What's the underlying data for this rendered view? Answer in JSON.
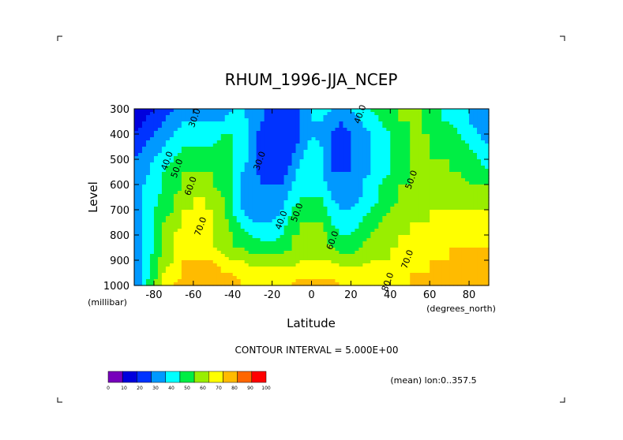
{
  "chart_data": {
    "type": "heatmap",
    "title": "RHUM_1996-JJA_NCEP",
    "xlabel": "Latitude",
    "ylabel": "Level",
    "x_unit": "(degrees_north)",
    "y_unit": "(millibar)",
    "xlim": [
      -90,
      90
    ],
    "ylim": [
      1000,
      300
    ],
    "x_ticks": [
      -80,
      -60,
      -40,
      -20,
      0,
      20,
      40,
      60,
      80
    ],
    "x_tick_labels": [
      "-80",
      "-60",
      "-40",
      "-20",
      "0",
      "20",
      "40",
      "60",
      "80"
    ],
    "y_ticks": [
      300,
      400,
      500,
      600,
      700,
      800,
      900,
      1000
    ],
    "y_tick_labels": [
      "300",
      "400",
      "500",
      "600",
      "700",
      "800",
      "900",
      "1000"
    ],
    "contour_interval_text": "CONTOUR INTERVAL = 5.000E+00",
    "annotation": "(mean) lon:0..357.5",
    "contour_labels": [
      {
        "text": "30.0",
        "lat": -58,
        "lev": 340
      },
      {
        "text": "40.0",
        "lat": -72,
        "lev": 510
      },
      {
        "text": "50.0",
        "lat": -67,
        "lev": 540
      },
      {
        "text": "60.0",
        "lat": -60,
        "lev": 610
      },
      {
        "text": "70.0",
        "lat": -55,
        "lev": 770
      },
      {
        "text": "30.0",
        "lat": -25,
        "lev": 510
      },
      {
        "text": "40.0",
        "lat": -14,
        "lev": 745
      },
      {
        "text": "50.0",
        "lat": -6,
        "lev": 715
      },
      {
        "text": "60.0",
        "lat": 12,
        "lev": 825
      },
      {
        "text": "40.0",
        "lat": 26,
        "lev": 325
      },
      {
        "text": "50.0",
        "lat": 52,
        "lev": 585
      },
      {
        "text": "70.0",
        "lat": 50,
        "lev": 900
      },
      {
        "text": "80.0",
        "lat": 40,
        "lev": 990
      }
    ],
    "lat_grid": [
      -90,
      -85,
      -80,
      -75,
      -70,
      -65,
      -60,
      -55,
      -50,
      -45,
      -40,
      -35,
      -30,
      -25,
      -20,
      -15,
      -10,
      -5,
      0,
      5,
      10,
      15,
      20,
      25,
      30,
      35,
      40,
      45,
      50,
      55,
      60,
      65,
      70,
      75,
      80,
      85,
      90
    ],
    "lev_grid": [
      300,
      350,
      400,
      450,
      500,
      550,
      600,
      650,
      700,
      750,
      800,
      850,
      900,
      950,
      1000
    ],
    "values": [
      [
        10,
        15,
        20,
        25,
        30,
        35,
        35,
        35,
        35,
        35,
        40,
        40,
        35,
        30,
        25,
        25,
        25,
        30,
        40,
        45,
        40,
        35,
        40,
        45,
        50,
        55,
        60,
        60,
        60,
        60,
        55,
        50,
        45,
        45,
        40,
        35,
        30
      ],
      [
        15,
        20,
        25,
        30,
        35,
        40,
        40,
        40,
        40,
        40,
        45,
        45,
        35,
        30,
        25,
        25,
        25,
        30,
        40,
        40,
        35,
        30,
        35,
        40,
        45,
        50,
        55,
        60,
        60,
        60,
        55,
        50,
        50,
        45,
        40,
        35,
        30
      ],
      [
        20,
        25,
        30,
        35,
        40,
        45,
        45,
        45,
        45,
        50,
        50,
        45,
        35,
        25,
        20,
        20,
        25,
        30,
        40,
        35,
        30,
        25,
        30,
        35,
        40,
        45,
        50,
        55,
        60,
        60,
        60,
        55,
        55,
        50,
        45,
        40,
        35
      ],
      [
        25,
        30,
        35,
        40,
        45,
        50,
        50,
        50,
        50,
        55,
        50,
        45,
        35,
        25,
        20,
        20,
        25,
        35,
        45,
        40,
        30,
        25,
        30,
        35,
        40,
        45,
        50,
        55,
        60,
        60,
        60,
        55,
        55,
        55,
        50,
        45,
        40
      ],
      [
        30,
        35,
        40,
        45,
        50,
        55,
        55,
        55,
        55,
        55,
        50,
        45,
        35,
        25,
        20,
        20,
        30,
        40,
        45,
        40,
        30,
        25,
        30,
        35,
        40,
        45,
        50,
        55,
        60,
        60,
        60,
        60,
        60,
        55,
        55,
        50,
        45
      ],
      [
        30,
        35,
        45,
        50,
        55,
        60,
        60,
        60,
        60,
        55,
        50,
        40,
        35,
        25,
        25,
        25,
        35,
        45,
        45,
        40,
        30,
        30,
        30,
        35,
        40,
        45,
        50,
        55,
        60,
        60,
        60,
        60,
        60,
        60,
        55,
        55,
        50
      ],
      [
        30,
        40,
        45,
        50,
        55,
        60,
        65,
        65,
        60,
        55,
        50,
        40,
        35,
        30,
        30,
        30,
        40,
        45,
        45,
        45,
        35,
        30,
        35,
        40,
        45,
        50,
        55,
        60,
        60,
        60,
        60,
        60,
        65,
        65,
        60,
        60,
        60
      ],
      [
        30,
        40,
        45,
        55,
        60,
        65,
        70,
        70,
        65,
        60,
        50,
        40,
        35,
        30,
        30,
        35,
        45,
        50,
        50,
        50,
        40,
        35,
        35,
        40,
        45,
        50,
        55,
        60,
        60,
        65,
        65,
        65,
        65,
        65,
        65,
        60,
        60
      ],
      [
        30,
        40,
        50,
        55,
        60,
        70,
        70,
        70,
        70,
        60,
        50,
        40,
        35,
        30,
        35,
        40,
        50,
        55,
        55,
        55,
        45,
        40,
        40,
        45,
        50,
        55,
        60,
        65,
        65,
        65,
        70,
        70,
        70,
        70,
        70,
        70,
        70
      ],
      [
        30,
        40,
        50,
        60,
        65,
        70,
        75,
        75,
        70,
        65,
        55,
        45,
        40,
        40,
        40,
        45,
        55,
        60,
        60,
        60,
        50,
        45,
        45,
        50,
        55,
        60,
        65,
        65,
        70,
        70,
        70,
        70,
        75,
        75,
        75,
        75,
        75
      ],
      [
        30,
        40,
        50,
        60,
        70,
        75,
        75,
        75,
        70,
        65,
        60,
        55,
        50,
        45,
        45,
        50,
        60,
        60,
        65,
        65,
        55,
        50,
        50,
        55,
        60,
        65,
        65,
        70,
        70,
        70,
        75,
        75,
        75,
        75,
        75,
        75,
        75
      ],
      [
        30,
        40,
        50,
        60,
        70,
        75,
        80,
        75,
        70,
        65,
        60,
        60,
        55,
        55,
        55,
        55,
        60,
        65,
        65,
        65,
        60,
        55,
        55,
        60,
        65,
        65,
        70,
        70,
        70,
        75,
        75,
        75,
        80,
        80,
        80,
        80,
        80
      ],
      [
        30,
        45,
        55,
        65,
        70,
        80,
        80,
        80,
        80,
        75,
        70,
        70,
        65,
        65,
        65,
        65,
        65,
        70,
        70,
        70,
        70,
        65,
        65,
        65,
        70,
        70,
        70,
        75,
        75,
        75,
        80,
        80,
        80,
        80,
        80,
        80,
        80
      ],
      [
        30,
        45,
        55,
        70,
        75,
        80,
        85,
        85,
        85,
        80,
        80,
        75,
        75,
        75,
        75,
        75,
        75,
        75,
        75,
        75,
        75,
        75,
        75,
        75,
        75,
        75,
        75,
        75,
        80,
        80,
        80,
        80,
        80,
        85,
        85,
        85,
        85
      ],
      [
        30,
        45,
        60,
        70,
        80,
        85,
        85,
        85,
        85,
        85,
        85,
        80,
        80,
        80,
        80,
        80,
        80,
        85,
        85,
        85,
        85,
        80,
        80,
        80,
        80,
        80,
        80,
        80,
        80,
        80,
        80,
        85,
        85,
        85,
        90,
        90,
        90
      ]
    ],
    "levels": [
      0,
      10,
      20,
      30,
      40,
      50,
      60,
      70,
      80,
      90,
      100
    ],
    "level_labels": [
      "0",
      "10",
      "20",
      "30",
      "40",
      "50",
      "60",
      "70",
      "80",
      "90",
      "100"
    ],
    "colors": [
      "#7700bb",
      "#0000dd",
      "#0033ff",
      "#0099ff",
      "#00ffff",
      "#00ee44",
      "#99ee00",
      "#ffff00",
      "#ffbb00",
      "#ff6600",
      "#ff0000"
    ],
    "grid": false,
    "legend": "bottom-left"
  }
}
